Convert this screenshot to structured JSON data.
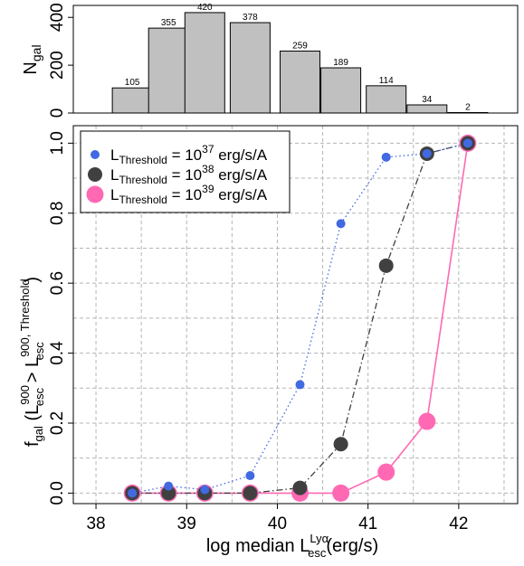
{
  "chart_data": [
    {
      "type": "bar",
      "title": "",
      "xlabel": "",
      "ylabel_main": "N",
      "ylabel_sub": "gal",
      "categories": [
        "38.4",
        "38.8",
        "39.2",
        "39.7",
        "40.2",
        "40.7",
        "41.2",
        "41.7",
        "42.1"
      ],
      "values": [
        105,
        355,
        420,
        378,
        259,
        189,
        114,
        34,
        2
      ],
      "value_labels": [
        "105",
        "355",
        "420",
        "378",
        "259",
        "189",
        "114",
        "34",
        "2"
      ],
      "ylim": [
        0,
        450
      ],
      "y_ticks": [
        "0",
        "200",
        "400"
      ],
      "colors": {
        "bar": "#c0c0c0",
        "edge": "#000000"
      }
    },
    {
      "type": "line",
      "title": "",
      "xlabel": {
        "prefix": "log median L",
        "superscript": "Lyα",
        "subscript": "esc",
        "suffix": "(erg/s)"
      },
      "ylabel": {
        "f": "f",
        "f_sub": "gal",
        "open": " (L",
        "sup1": "900",
        "sub1": "esc",
        "gt": " > L",
        "sup2": "900, Threshold",
        "sub2": "esc",
        "close": " )"
      },
      "xlim": [
        37.75,
        42.65
      ],
      "ylim": [
        -0.03,
        1.05
      ],
      "x_ticks": [
        "38",
        "39",
        "40",
        "41",
        "42"
      ],
      "y_ticks": [
        "0.0",
        "0.2",
        "0.4",
        "0.6",
        "0.8",
        "1.0"
      ],
      "grid": true,
      "legend_position": "top-left",
      "x": [
        38.4,
        38.8,
        39.2,
        39.7,
        40.25,
        40.7,
        41.2,
        41.65,
        42.1
      ],
      "series": [
        {
          "legend_main": "L",
          "legend_sub": "Threshold",
          "legend_eq": " = 10",
          "legend_exp": "37",
          "legend_unit": " erg/s/A",
          "values": [
            0.0,
            0.02,
            0.01,
            0.05,
            0.31,
            0.77,
            0.96,
            0.97,
            1.0
          ],
          "color": "#4169e1",
          "line_style": "dotted",
          "marker_size": "small"
        },
        {
          "legend_main": "L",
          "legend_sub": "Threshold",
          "legend_eq": " = 10",
          "legend_exp": "38",
          "legend_unit": " erg/s/A",
          "values": [
            0.0,
            0.0,
            0.0,
            0.0,
            0.015,
            0.14,
            0.65,
            0.97,
            1.0
          ],
          "color": "#404040",
          "line_style": "dashdot",
          "marker_size": "medium"
        },
        {
          "legend_main": "L",
          "legend_sub": "Threshold",
          "legend_eq": " = 10",
          "legend_exp": "39",
          "legend_unit": " erg/s/A",
          "values": [
            0.0,
            0.0,
            0.0,
            0.0,
            0.0,
            0.0,
            0.06,
            0.205,
            1.0
          ],
          "color": "#ff69b4",
          "line_style": "solid",
          "marker_size": "large"
        }
      ]
    }
  ]
}
